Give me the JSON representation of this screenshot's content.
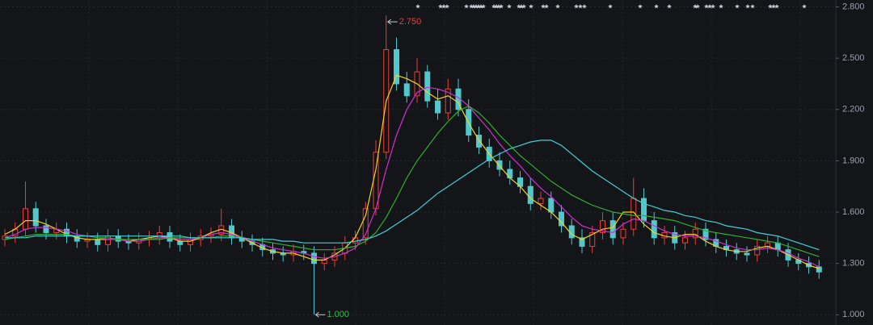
{
  "chart_data": {
    "type": "candlestick",
    "ylim": [
      0.94,
      2.84
    ],
    "yticks": [
      {
        "value": 1.0,
        "label": "1.000"
      },
      {
        "value": 1.3,
        "label": "1.300"
      },
      {
        "value": 1.6,
        "label": "1.600"
      },
      {
        "value": 1.9,
        "label": "1.900"
      },
      {
        "value": 2.2,
        "label": "2.200"
      },
      {
        "value": 2.5,
        "label": "2.500"
      },
      {
        "value": 2.8,
        "label": "2.800"
      }
    ],
    "grid": true,
    "up_color": "#e8403a",
    "down_color": "#52c8cc",
    "open": [
      1.44,
      1.46,
      1.5,
      1.62,
      1.52,
      1.48,
      1.5,
      1.46,
      1.43,
      1.44,
      1.41,
      1.46,
      1.43,
      1.42,
      1.44,
      1.45,
      1.48,
      1.43,
      1.41,
      1.44,
      1.46,
      1.47,
      1.52,
      1.45,
      1.43,
      1.41,
      1.38,
      1.36,
      1.35,
      1.37,
      1.36,
      1.3,
      1.32,
      1.36,
      1.42,
      1.45,
      1.62,
      1.95,
      2.55,
      2.35,
      2.28,
      2.42,
      2.25,
      2.18,
      2.32,
      2.2,
      2.05,
      1.98,
      1.9,
      1.85,
      1.8,
      1.75,
      1.65,
      1.68,
      1.6,
      1.52,
      1.45,
      1.4,
      1.48,
      1.55,
      1.45,
      1.5,
      1.68,
      1.55,
      1.45,
      1.48,
      1.42,
      1.45,
      1.5,
      1.44,
      1.4,
      1.38,
      1.36,
      1.35,
      1.4,
      1.42,
      1.38,
      1.32,
      1.3,
      1.28
    ],
    "high": [
      1.5,
      1.54,
      1.78,
      1.66,
      1.56,
      1.54,
      1.54,
      1.5,
      1.48,
      1.48,
      1.5,
      1.5,
      1.47,
      1.48,
      1.49,
      1.52,
      1.52,
      1.47,
      1.48,
      1.5,
      1.51,
      1.62,
      1.56,
      1.49,
      1.47,
      1.45,
      1.42,
      1.4,
      1.41,
      1.41,
      1.4,
      1.36,
      1.4,
      1.46,
      1.49,
      1.66,
      2.02,
      2.75,
      2.62,
      2.42,
      2.5,
      2.46,
      2.32,
      2.38,
      2.38,
      2.26,
      2.1,
      2.03,
      1.95,
      1.9,
      1.84,
      1.8,
      1.72,
      1.72,
      1.64,
      1.56,
      1.5,
      1.52,
      1.6,
      1.6,
      1.54,
      1.8,
      1.74,
      1.6,
      1.52,
      1.52,
      1.49,
      1.54,
      1.54,
      1.48,
      1.44,
      1.42,
      1.4,
      1.44,
      1.46,
      1.46,
      1.42,
      1.36,
      1.34,
      1.32
    ],
    "low": [
      1.4,
      1.42,
      1.46,
      1.48,
      1.44,
      1.44,
      1.42,
      1.39,
      1.39,
      1.37,
      1.37,
      1.39,
      1.38,
      1.38,
      1.4,
      1.41,
      1.39,
      1.37,
      1.37,
      1.4,
      1.42,
      1.43,
      1.41,
      1.39,
      1.37,
      1.34,
      1.32,
      1.31,
      1.31,
      1.32,
      1.0,
      1.26,
      1.28,
      1.32,
      1.38,
      1.41,
      1.58,
      1.91,
      2.31,
      2.24,
      2.24,
      2.21,
      2.14,
      2.14,
      2.16,
      2.01,
      1.94,
      1.86,
      1.81,
      1.76,
      1.71,
      1.61,
      1.61,
      1.56,
      1.48,
      1.41,
      1.36,
      1.36,
      1.44,
      1.41,
      1.41,
      1.46,
      1.51,
      1.41,
      1.41,
      1.38,
      1.38,
      1.41,
      1.4,
      1.36,
      1.34,
      1.32,
      1.31,
      1.31,
      1.36,
      1.34,
      1.28,
      1.26,
      1.24,
      1.21
    ],
    "close": [
      1.46,
      1.5,
      1.62,
      1.52,
      1.48,
      1.5,
      1.46,
      1.43,
      1.44,
      1.41,
      1.46,
      1.43,
      1.42,
      1.44,
      1.45,
      1.48,
      1.43,
      1.41,
      1.44,
      1.46,
      1.47,
      1.52,
      1.45,
      1.43,
      1.41,
      1.38,
      1.36,
      1.35,
      1.37,
      1.36,
      1.3,
      1.32,
      1.36,
      1.42,
      1.45,
      1.62,
      1.95,
      2.55,
      2.35,
      2.28,
      2.42,
      2.25,
      2.18,
      2.32,
      2.2,
      2.05,
      1.98,
      1.9,
      1.85,
      1.8,
      1.75,
      1.65,
      1.68,
      1.6,
      1.52,
      1.45,
      1.4,
      1.48,
      1.55,
      1.45,
      1.5,
      1.68,
      1.55,
      1.45,
      1.48,
      1.42,
      1.45,
      1.5,
      1.44,
      1.4,
      1.38,
      1.36,
      1.35,
      1.4,
      1.42,
      1.38,
      1.32,
      1.3,
      1.28,
      1.25
    ],
    "lines": [
      {
        "color": "#f2d21b",
        "values": [
          1.47,
          1.5,
          1.55,
          1.55,
          1.53,
          1.5,
          1.47,
          1.45,
          1.44,
          1.44,
          1.44,
          1.44,
          1.43,
          1.44,
          1.45,
          1.46,
          1.45,
          1.43,
          1.43,
          1.45,
          1.48,
          1.5,
          1.48,
          1.45,
          1.42,
          1.39,
          1.37,
          1.36,
          1.36,
          1.34,
          1.32,
          1.32,
          1.35,
          1.39,
          1.45,
          1.58,
          1.85,
          2.25,
          2.4,
          2.38,
          2.35,
          2.3,
          2.26,
          2.28,
          2.24,
          2.12,
          2.02,
          1.94,
          1.87,
          1.8,
          1.75,
          1.68,
          1.64,
          1.6,
          1.54,
          1.47,
          1.44,
          1.47,
          1.5,
          1.51,
          1.6,
          1.6,
          1.53,
          1.48,
          1.46,
          1.45,
          1.47,
          1.47,
          1.43,
          1.4,
          1.38,
          1.37,
          1.37,
          1.39,
          1.4,
          1.38,
          1.35,
          1.32,
          1.29,
          1.27
        ]
      },
      {
        "color": "#d22fd2",
        "values": [
          1.45,
          1.47,
          1.5,
          1.51,
          1.51,
          1.5,
          1.49,
          1.47,
          1.46,
          1.45,
          1.44,
          1.44,
          1.43,
          1.43,
          1.44,
          1.45,
          1.45,
          1.44,
          1.44,
          1.45,
          1.47,
          1.48,
          1.47,
          1.45,
          1.43,
          1.41,
          1.39,
          1.38,
          1.37,
          1.36,
          1.34,
          1.33,
          1.34,
          1.36,
          1.39,
          1.47,
          1.62,
          1.85,
          2.05,
          2.2,
          2.3,
          2.33,
          2.32,
          2.3,
          2.27,
          2.22,
          2.15,
          2.08,
          2.0,
          1.93,
          1.87,
          1.8,
          1.74,
          1.69,
          1.63,
          1.57,
          1.52,
          1.5,
          1.49,
          1.48,
          1.53,
          1.56,
          1.55,
          1.52,
          1.49,
          1.47,
          1.46,
          1.46,
          1.45,
          1.43,
          1.41,
          1.39,
          1.38,
          1.38,
          1.39,
          1.38,
          1.36,
          1.33,
          1.31,
          1.28
        ]
      },
      {
        "color": "#2fae2f",
        "values": [
          1.44,
          1.45,
          1.46,
          1.47,
          1.47,
          1.47,
          1.47,
          1.46,
          1.46,
          1.45,
          1.45,
          1.44,
          1.44,
          1.44,
          1.44,
          1.44,
          1.45,
          1.45,
          1.45,
          1.45,
          1.45,
          1.46,
          1.46,
          1.45,
          1.44,
          1.43,
          1.42,
          1.41,
          1.4,
          1.39,
          1.38,
          1.38,
          1.38,
          1.39,
          1.4,
          1.43,
          1.48,
          1.57,
          1.68,
          1.8,
          1.9,
          1.98,
          2.06,
          2.13,
          2.19,
          2.22,
          2.18,
          2.12,
          2.05,
          1.99,
          1.93,
          1.88,
          1.83,
          1.78,
          1.74,
          1.7,
          1.67,
          1.64,
          1.62,
          1.6,
          1.59,
          1.58,
          1.58,
          1.57,
          1.56,
          1.55,
          1.53,
          1.51,
          1.49,
          1.48,
          1.47,
          1.46,
          1.45,
          1.44,
          1.43,
          1.42,
          1.4,
          1.38,
          1.36,
          1.34
        ]
      },
      {
        "color": "#3fd0d6",
        "values": [
          1.45,
          1.45,
          1.45,
          1.46,
          1.46,
          1.46,
          1.46,
          1.46,
          1.46,
          1.46,
          1.46,
          1.46,
          1.46,
          1.46,
          1.46,
          1.46,
          1.46,
          1.46,
          1.45,
          1.45,
          1.45,
          1.45,
          1.45,
          1.45,
          1.44,
          1.44,
          1.44,
          1.43,
          1.43,
          1.42,
          1.42,
          1.42,
          1.42,
          1.42,
          1.43,
          1.44,
          1.46,
          1.49,
          1.53,
          1.57,
          1.61,
          1.66,
          1.71,
          1.75,
          1.79,
          1.83,
          1.87,
          1.91,
          1.94,
          1.97,
          1.99,
          2.01,
          2.02,
          2.02,
          1.99,
          1.94,
          1.89,
          1.84,
          1.8,
          1.76,
          1.72,
          1.68,
          1.65,
          1.63,
          1.61,
          1.6,
          1.58,
          1.57,
          1.55,
          1.54,
          1.52,
          1.51,
          1.5,
          1.48,
          1.47,
          1.46,
          1.44,
          1.42,
          1.4,
          1.38
        ]
      }
    ],
    "annotations": [
      {
        "text": "2.750",
        "color": "#e8403a"
      },
      {
        "text": "1.000",
        "color": "#3fb84a"
      }
    ]
  }
}
